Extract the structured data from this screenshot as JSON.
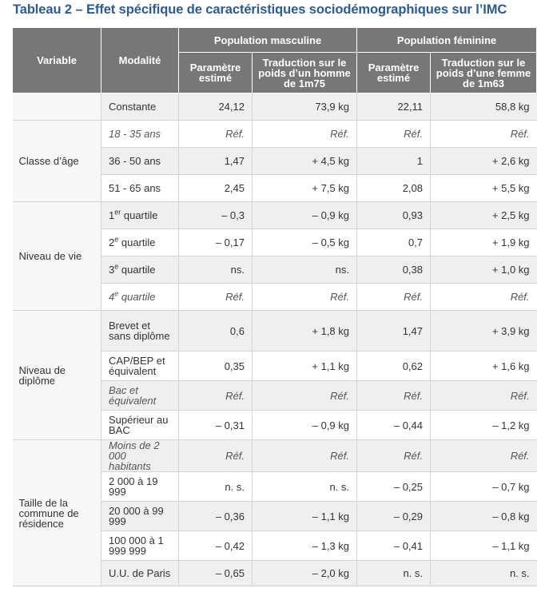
{
  "title": "Tableau 2 – Effet spécifique de caractéristiques sociodémographiques sur l’IMC",
  "headers": {
    "variable": "Variable",
    "modalite": "Modalité",
    "pop_masc": "Population masculine",
    "pop_fem": "Population féminine",
    "param_m": "Paramètre estimé",
    "trad_m": "Traduction sur le poids d’un homme de 1m75",
    "param_f": "Paramètre estimé",
    "trad_f": "Traduction sur le poids d’une femme de 1m63"
  },
  "rows": [
    {
      "group": "",
      "mod": "Constante",
      "m1": "24,12",
      "m2": "73,9 kg",
      "f1": "22,11",
      "f2": "58,8 kg",
      "ref": false
    },
    {
      "group": "Classe d’âge",
      "mod": "18 - 35 ans",
      "m1": "Réf.",
      "m2": "Réf.",
      "f1": "Réf.",
      "f2": "Réf.",
      "ref": true
    },
    {
      "mod": "36 - 50 ans",
      "m1": "1,47",
      "m2": "+ 4,5 kg",
      "f1": "1",
      "f2": "+ 2,6 kg",
      "ref": false
    },
    {
      "mod": "51 - 65 ans",
      "m1": "2,45",
      "m2": "+ 7,5 kg",
      "f1": "2,08",
      "f2": "+ 5,5 kg",
      "ref": false
    },
    {
      "group": "Niveau de vie",
      "mod": "1",
      "sup": "er",
      "mod_tail": " quartile",
      "m1": "– 0,3",
      "m2": "– 0,9 kg",
      "f1": "0,93",
      "f2": "+ 2,5 kg",
      "ref": false
    },
    {
      "mod": "2",
      "sup": "e",
      "mod_tail": " quartile",
      "m1": "– 0,17",
      "m2": "– 0,5 kg",
      "f1": "0,7",
      "f2": "+ 1,9 kg",
      "ref": false
    },
    {
      "mod": "3",
      "sup": "e",
      "mod_tail": " quartile",
      "m1": "ns.",
      "m2": "ns.",
      "f1": "0,38",
      "f2": "+ 1,0 kg",
      "ref": false
    },
    {
      "mod": "4",
      "sup": "e",
      "mod_tail": " quartile",
      "m1": "Réf.",
      "m2": "Réf.",
      "f1": "Réf.",
      "f2": "Réf.",
      "ref": true
    },
    {
      "group": "Niveau de diplôme",
      "mod": "Brevet et sans diplôme",
      "m1": "0,6",
      "m2": "+ 1,8 kg",
      "f1": "1,47",
      "f2": "+ 3,9 kg",
      "ref": false
    },
    {
      "mod": "CAP/BEP et équivalent",
      "m1": "0,35",
      "m2": "+ 1,1 kg",
      "f1": "0,62",
      "f2": "+ 1,6 kg",
      "ref": false
    },
    {
      "mod": "Bac et équivalent",
      "m1": "Réf.",
      "m2": "Réf.",
      "f1": "Réf.",
      "f2": "Réf.",
      "ref": true
    },
    {
      "mod": "Supérieur au BAC",
      "m1": "– 0,31",
      "m2": "– 0,9 kg",
      "f1": "– 0,44",
      "f2": "– 1,2 kg",
      "ref": false
    },
    {
      "group": "Taille de la commune de résidence",
      "mod": "Moins de 2 000 habitants",
      "m1": "Réf.",
      "m2": "Réf.",
      "f1": "Réf.",
      "f2": "Réf.",
      "ref": true
    },
    {
      "mod": "2 000 à 19 999",
      "m1": "n. s.",
      "m2": "n. s.",
      "f1": "– 0,25",
      "f2": "– 0,7 kg",
      "ref": false
    },
    {
      "mod": "20 000 à 99 999",
      "m1": "– 0,36",
      "m2": "– 1,1 kg",
      "f1": "– 0,29",
      "f2": "– 0,8 kg",
      "ref": false
    },
    {
      "mod": "100 000 à 1 999 999",
      "m1": "– 0,42",
      "m2": "– 1,3 kg",
      "f1": "– 0,41",
      "f2": "– 1,1 kg",
      "ref": false
    },
    {
      "mod": "U.U. de Paris",
      "m1": "– 0,65",
      "m2": "– 2,0 kg",
      "f1": "n. s.",
      "f2": "n. s.",
      "ref": false
    }
  ]
}
